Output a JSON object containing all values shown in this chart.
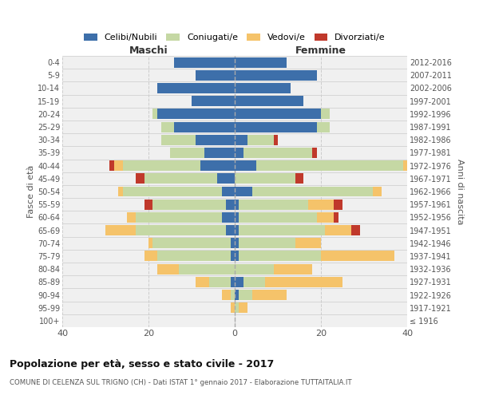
{
  "age_groups": [
    "100+",
    "95-99",
    "90-94",
    "85-89",
    "80-84",
    "75-79",
    "70-74",
    "65-69",
    "60-64",
    "55-59",
    "50-54",
    "45-49",
    "40-44",
    "35-39",
    "30-34",
    "25-29",
    "20-24",
    "15-19",
    "10-14",
    "5-9",
    "0-4"
  ],
  "birth_years": [
    "≤ 1916",
    "1917-1921",
    "1922-1926",
    "1927-1931",
    "1932-1936",
    "1937-1941",
    "1942-1946",
    "1947-1951",
    "1952-1956",
    "1957-1961",
    "1962-1966",
    "1967-1971",
    "1972-1976",
    "1977-1981",
    "1982-1986",
    "1987-1991",
    "1992-1996",
    "1997-2001",
    "2002-2006",
    "2007-2011",
    "2012-2016"
  ],
  "males": {
    "celibi": [
      0,
      0,
      0,
      1,
      0,
      1,
      1,
      2,
      3,
      2,
      3,
      4,
      8,
      7,
      9,
      14,
      18,
      10,
      18,
      9,
      14
    ],
    "coniugati": [
      0,
      0,
      1,
      5,
      13,
      17,
      18,
      21,
      20,
      17,
      23,
      17,
      18,
      8,
      8,
      3,
      1,
      0,
      0,
      0,
      0
    ],
    "vedovi": [
      0,
      1,
      2,
      3,
      5,
      3,
      1,
      7,
      2,
      0,
      1,
      0,
      2,
      0,
      0,
      0,
      0,
      0,
      0,
      0,
      0
    ],
    "divorziati": [
      0,
      0,
      0,
      0,
      0,
      0,
      0,
      0,
      0,
      2,
      0,
      2,
      1,
      0,
      0,
      0,
      0,
      0,
      0,
      0,
      0
    ]
  },
  "females": {
    "nubili": [
      0,
      0,
      1,
      2,
      0,
      1,
      1,
      1,
      1,
      1,
      4,
      0,
      5,
      2,
      3,
      19,
      20,
      16,
      13,
      19,
      12
    ],
    "coniugate": [
      0,
      1,
      3,
      5,
      9,
      19,
      13,
      20,
      18,
      16,
      28,
      14,
      34,
      16,
      6,
      3,
      2,
      0,
      0,
      0,
      0
    ],
    "vedove": [
      0,
      2,
      8,
      18,
      9,
      17,
      6,
      6,
      4,
      6,
      2,
      0,
      1,
      0,
      0,
      0,
      0,
      0,
      0,
      0,
      0
    ],
    "divorziate": [
      0,
      0,
      0,
      0,
      0,
      0,
      0,
      2,
      1,
      2,
      0,
      2,
      1,
      1,
      1,
      0,
      0,
      0,
      0,
      0,
      0
    ]
  },
  "colors": {
    "celibi": "#3d6faa",
    "coniugati": "#c5d8a4",
    "vedovi": "#f5c36a",
    "divorziati": "#c0392b"
  },
  "xlim": 40,
  "title": "Popolazione per età, sesso e stato civile - 2017",
  "subtitle": "COMUNE DI CELENZA SUL TRIGNO (CH) - Dati ISTAT 1° gennaio 2017 - Elaborazione TUTTAITALIA.IT",
  "ylabel_left": "Fasce di età",
  "ylabel_right": "Anni di nascita",
  "xlabel_left": "Maschi",
  "xlabel_right": "Femmine",
  "bg_color": "#f0f0f0",
  "grid_color": "#cccccc"
}
